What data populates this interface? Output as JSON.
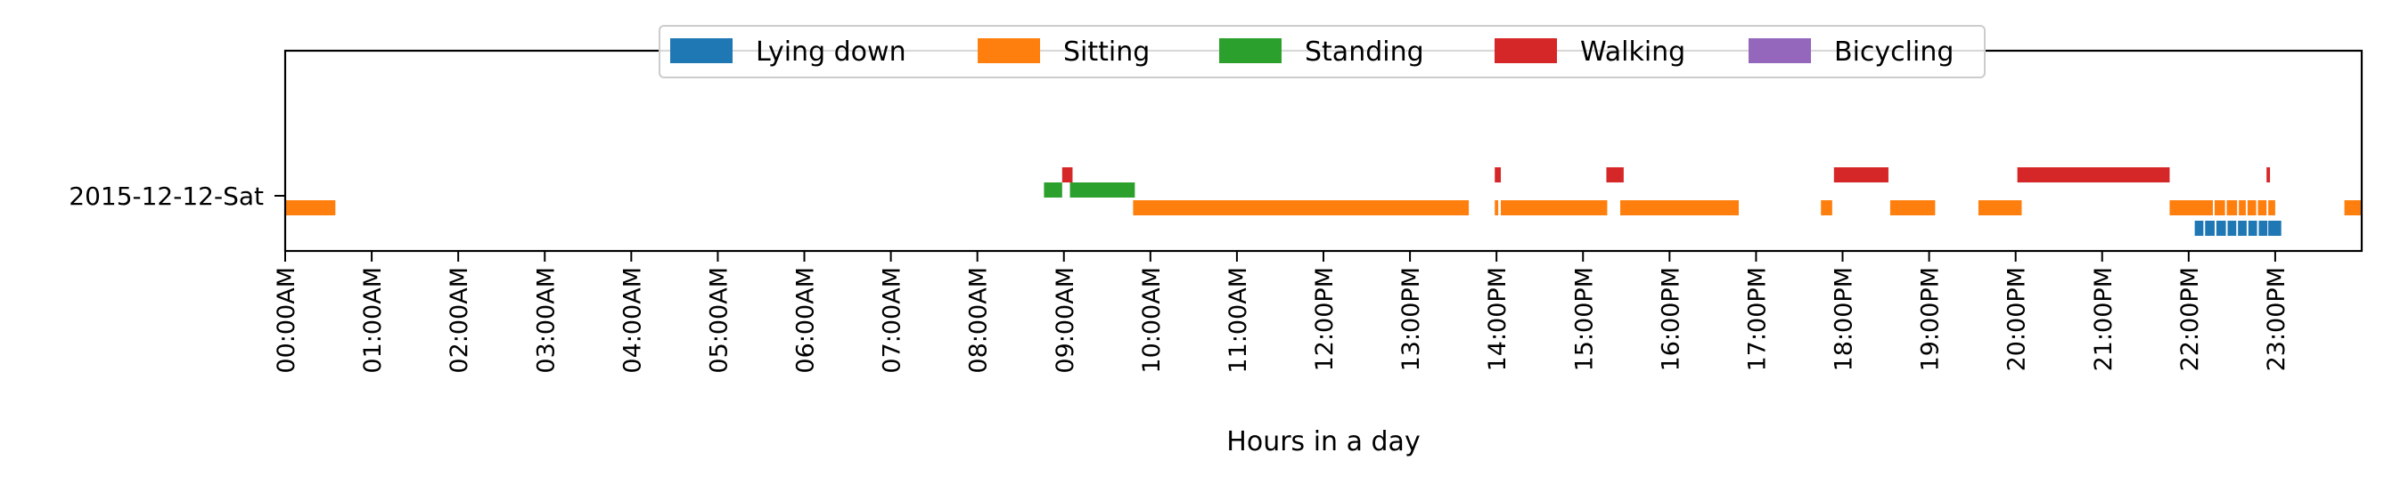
{
  "chart_data": {
    "type": "bar",
    "orientation": "horizontal-timeline",
    "xlabel": "Hours in a day",
    "ylabel": "",
    "xlim": [
      0,
      24
    ],
    "y_categories": [
      "2015-12-12-Sat"
    ],
    "x_tick_values": [
      0,
      1,
      2,
      3,
      4,
      5,
      6,
      7,
      8,
      9,
      10,
      11,
      12,
      13,
      14,
      15,
      16,
      17,
      18,
      19,
      20,
      21,
      22,
      23
    ],
    "x_tick_labels": [
      "00:00AM",
      "01:00AM",
      "02:00AM",
      "03:00AM",
      "04:00AM",
      "05:00AM",
      "06:00AM",
      "07:00AM",
      "08:00AM",
      "09:00AM",
      "10:00AM",
      "11:00AM",
      "12:00PM",
      "13:00PM",
      "14:00PM",
      "15:00PM",
      "16:00PM",
      "17:00PM",
      "18:00PM",
      "19:00PM",
      "20:00PM",
      "21:00PM",
      "22:00PM",
      "23:00PM"
    ],
    "legend_position": "top-center",
    "grid": false,
    "series": [
      {
        "name": "Lying down",
        "color": "#1f77b4",
        "lane": 0,
        "segments": [
          [
            22.07,
            22.17
          ],
          [
            22.19,
            22.3
          ],
          [
            22.32,
            22.43
          ],
          [
            22.45,
            22.55
          ],
          [
            22.57,
            22.67
          ],
          [
            22.69,
            22.79
          ],
          [
            22.81,
            22.91
          ],
          [
            22.92,
            23.07
          ]
        ]
      },
      {
        "name": "Sitting",
        "color": "#ff7f0e",
        "lane": 1,
        "segments": [
          [
            0.0,
            0.58
          ],
          [
            9.8,
            13.68
          ],
          [
            13.98,
            14.02
          ],
          [
            14.05,
            15.28
          ],
          [
            15.43,
            16.8
          ],
          [
            17.75,
            17.88
          ],
          [
            18.55,
            19.07
          ],
          [
            19.57,
            20.07
          ],
          [
            21.78,
            22.28
          ],
          [
            22.3,
            22.42
          ],
          [
            22.44,
            22.56
          ],
          [
            22.58,
            22.66
          ],
          [
            22.68,
            22.78
          ],
          [
            22.8,
            22.9
          ],
          [
            22.92,
            23.0
          ],
          [
            23.8,
            24.0
          ]
        ]
      },
      {
        "name": "Standing",
        "color": "#2ca02c",
        "lane": 2,
        "segments": [
          [
            8.77,
            8.98
          ],
          [
            9.07,
            9.82
          ]
        ]
      },
      {
        "name": "Walking",
        "color": "#d62728",
        "lane": 3,
        "segments": [
          [
            8.98,
            9.1
          ],
          [
            13.98,
            14.05
          ],
          [
            15.27,
            15.47
          ],
          [
            17.9,
            18.53
          ],
          [
            20.02,
            21.78
          ],
          [
            22.9,
            22.94
          ]
        ]
      },
      {
        "name": "Bicycling",
        "color": "#9467bd",
        "lane": 4,
        "segments": []
      }
    ]
  }
}
